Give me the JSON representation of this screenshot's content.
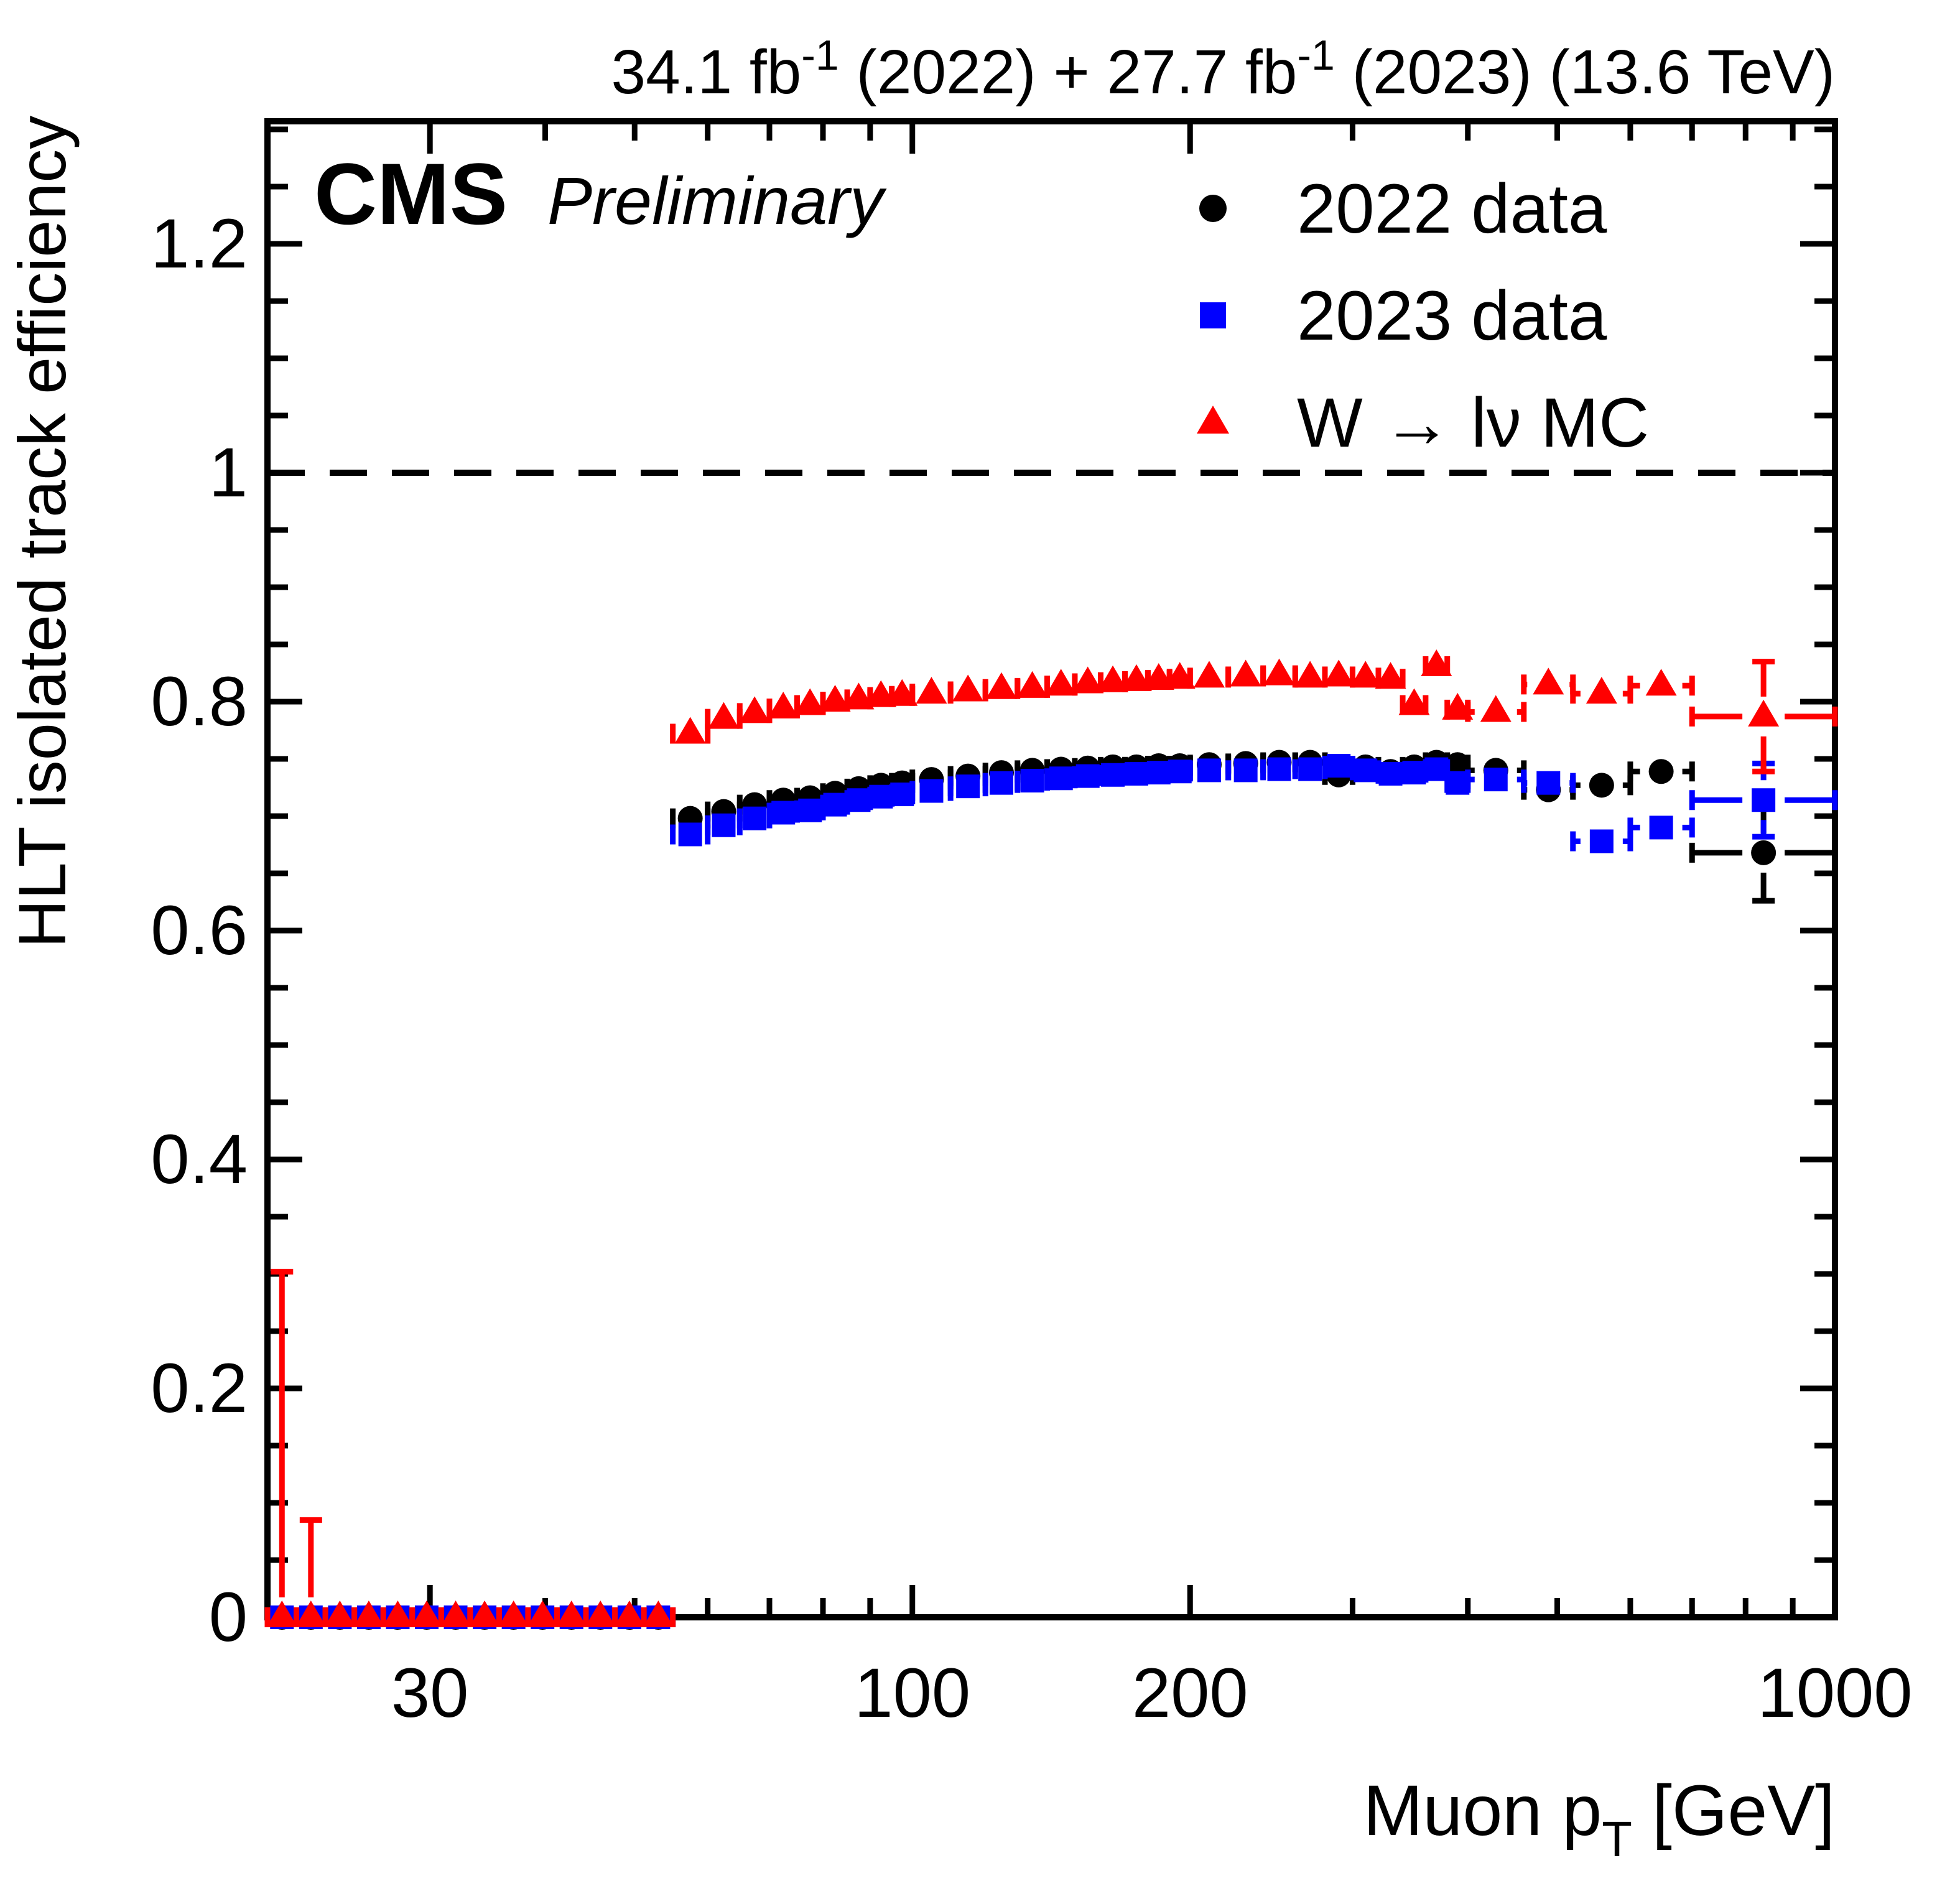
{
  "header": {
    "experiment": "CMS",
    "preliminary": "Preliminary"
  },
  "title_segments": [
    {
      "text": "34.1 fb"
    },
    {
      "text": "-1",
      "sup": true
    },
    {
      "text": " (2022) + 27.7 fb"
    },
    {
      "text": "-1",
      "sup": true
    },
    {
      "text": " (2023) (13.6 TeV)"
    }
  ],
  "axes": {
    "x": {
      "title_segments": [
        {
          "text": "Muon p"
        },
        {
          "text": "T",
          "sub": true
        },
        {
          "text": " [GeV]"
        }
      ],
      "scale": "log",
      "min": 20,
      "max": 1000,
      "labeled_ticks": [
        30,
        100,
        200,
        1000
      ],
      "labeled_tick_texts": [
        "30",
        "100",
        "200",
        "1000"
      ],
      "minor_ticks": [
        40,
        50,
        60,
        70,
        80,
        90,
        300,
        400,
        500,
        600,
        700,
        800,
        900
      ]
    },
    "y": {
      "title": "HLT isolated track efficiency",
      "min": 0,
      "max": 1.307,
      "major_ticks": [
        0,
        0.2,
        0.4,
        0.6,
        0.8,
        1,
        1.2
      ],
      "major_labels": [
        "0",
        "0.2",
        "0.4",
        "0.6",
        "0.8",
        "1",
        "1.2"
      ],
      "minor_step": 0.05
    }
  },
  "reference_line_y": 1,
  "legend": {
    "items": [
      {
        "label": "2022 data",
        "marker": "circle",
        "color": "#000000"
      },
      {
        "label": "2023 data",
        "marker": "square",
        "color": "#0000ff"
      },
      {
        "label": "W → lν MC",
        "marker": "triangle",
        "color": "#ff0000"
      }
    ]
  },
  "chart_data": {
    "type": "scatter",
    "title": "34.1 fb-1 (2022) + 27.7 fb-1 (2023) (13.6 TeV)",
    "xlabel": "Muon pT [GeV]",
    "ylabel": "HLT isolated track efficiency",
    "xlim": [
      20,
      1000
    ],
    "ylim": [
      0,
      1.307
    ],
    "x_bins": [
      [
        55,
        60
      ],
      [
        60,
        65
      ],
      [
        65,
        70
      ],
      [
        70,
        75
      ],
      [
        75,
        80
      ],
      [
        80,
        85
      ],
      [
        85,
        90
      ],
      [
        90,
        95
      ],
      [
        95,
        100
      ],
      [
        100,
        110
      ],
      [
        110,
        120
      ],
      [
        120,
        130
      ],
      [
        130,
        140
      ],
      [
        140,
        150
      ],
      [
        150,
        160
      ],
      [
        160,
        170
      ],
      [
        170,
        180
      ],
      [
        180,
        190
      ],
      [
        190,
        200
      ],
      [
        200,
        220
      ],
      [
        220,
        240
      ],
      [
        240,
        260
      ],
      [
        260,
        280
      ],
      [
        280,
        300
      ],
      [
        300,
        320
      ],
      [
        320,
        340
      ],
      [
        340,
        360
      ],
      [
        360,
        380
      ],
      [
        380,
        400
      ],
      [
        400,
        460
      ],
      [
        460,
        520
      ],
      [
        520,
        600
      ],
      [
        600,
        700
      ],
      [
        700,
        1000
      ]
    ],
    "zero_bins": {
      "range": [
        20,
        55
      ],
      "count": 14,
      "value": 0,
      "red_upper_err": [
        0.302,
        0.085
      ]
    },
    "series": [
      {
        "name": "2022 data",
        "color": "#000000",
        "marker": "circle",
        "eff": [
          0.698,
          0.704,
          0.71,
          0.714,
          0.716,
          0.72,
          0.724,
          0.727,
          0.729,
          0.732,
          0.735,
          0.738,
          0.74,
          0.741,
          0.742,
          0.743,
          0.743,
          0.744,
          0.744,
          0.745,
          0.746,
          0.747,
          0.747,
          0.736,
          0.743,
          0.739,
          0.743,
          0.747,
          0.745,
          0.74,
          0.723,
          0.727,
          0.739,
          0.668
        ],
        "yerr": [
          0.005,
          0.005,
          0.004,
          0.004,
          0.004,
          0.004,
          0.004,
          0.004,
          0.004,
          0.003,
          0.003,
          0.003,
          0.004,
          0.004,
          0.004,
          0.004,
          0.005,
          0.005,
          0.005,
          0.004,
          0.005,
          0.005,
          0.006,
          0.007,
          0.008,
          0.009,
          0.01,
          0.011,
          0.012,
          0.011,
          0.013,
          0.016,
          0.02,
          0.042
        ]
      },
      {
        "name": "2023 data",
        "color": "#0000ff",
        "marker": "square",
        "eff": [
          0.684,
          0.692,
          0.698,
          0.703,
          0.705,
          0.71,
          0.714,
          0.717,
          0.719,
          0.722,
          0.726,
          0.729,
          0.731,
          0.733,
          0.735,
          0.736,
          0.737,
          0.738,
          0.739,
          0.74,
          0.74,
          0.741,
          0.741,
          0.744,
          0.74,
          0.737,
          0.738,
          0.741,
          0.729,
          0.732,
          0.729,
          0.678,
          0.69,
          0.714
        ],
        "yerr": [
          0.005,
          0.005,
          0.004,
          0.004,
          0.004,
          0.004,
          0.004,
          0.004,
          0.004,
          0.003,
          0.003,
          0.003,
          0.004,
          0.004,
          0.004,
          0.004,
          0.005,
          0.005,
          0.005,
          0.004,
          0.005,
          0.005,
          0.006,
          0.007,
          0.008,
          0.009,
          0.01,
          0.011,
          0.012,
          0.011,
          0.013,
          0.017,
          0.019,
          0.032
        ]
      },
      {
        "name": "W → lν MC",
        "color": "#ff0000",
        "marker": "triangle",
        "eff": [
          0.772,
          0.785,
          0.79,
          0.794,
          0.797,
          0.8,
          0.802,
          0.804,
          0.805,
          0.807,
          0.809,
          0.811,
          0.812,
          0.814,
          0.816,
          0.817,
          0.818,
          0.819,
          0.82,
          0.821,
          0.822,
          0.823,
          0.821,
          0.822,
          0.821,
          0.82,
          0.797,
          0.831,
          0.793,
          0.791,
          0.815,
          0.807,
          0.814,
          0.787
        ],
        "yerr": [
          0.006,
          0.005,
          0.005,
          0.004,
          0.004,
          0.004,
          0.004,
          0.004,
          0.004,
          0.003,
          0.003,
          0.003,
          0.003,
          0.004,
          0.004,
          0.004,
          0.004,
          0.005,
          0.005,
          0.004,
          0.005,
          0.005,
          0.006,
          0.006,
          0.007,
          0.008,
          0.011,
          0.012,
          0.014,
          0.012,
          0.013,
          0.015,
          0.02,
          0.048
        ]
      }
    ]
  }
}
